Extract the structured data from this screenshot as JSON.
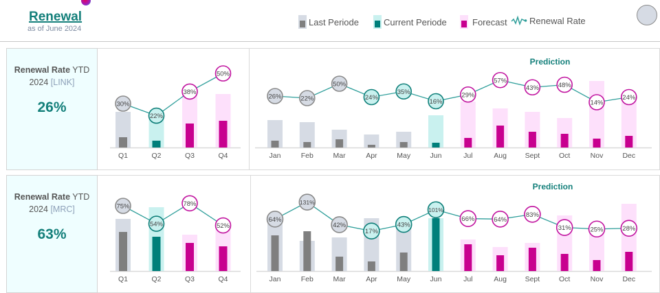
{
  "header": {
    "title": "Renewal",
    "subtitle": "as of June 2024"
  },
  "legend": [
    {
      "label": "Last Periode",
      "style": "last"
    },
    {
      "label": "Current Periode",
      "style": "current"
    },
    {
      "label": "Forecast",
      "style": "forecast"
    },
    {
      "label": "Renewal Rate",
      "icon": "line-chart-icon"
    }
  ],
  "colors": {
    "last_bg": "#d6dbe4",
    "last_fg": "#7f7f7f",
    "last_border": "#8a8a8a",
    "current_bg": "#c9f1ef",
    "current_fg": "#007f7a",
    "current_border": "#0f7f79",
    "forecast_bg": "#fde0fb",
    "forecast_fg": "#c8008f",
    "forecast_border": "#c0119e",
    "line": "#2e9e9a",
    "accent": "#137f7a"
  },
  "kpis": [
    {
      "label_bold": "Renewal Rate",
      "label_rest": " YTD",
      "year": "2024",
      "tag": "[LINK]",
      "value": "26%"
    },
    {
      "label_bold": "Renewal Rate",
      "label_rest": " YTD",
      "year": "2024",
      "tag": "[MRC]",
      "value": "63%"
    }
  ],
  "chart_data": [
    {
      "type": "bar+line",
      "id": "link-quarterly",
      "categories": [
        "Q1",
        "Q2",
        "Q3",
        "Q4"
      ],
      "period": [
        "last",
        "current",
        "forecast",
        "forecast"
      ],
      "bar_style": [
        "last",
        "current",
        "forecast",
        "forecast"
      ],
      "target": [
        52,
        45,
        82,
        78
      ],
      "actual": [
        15,
        10,
        35,
        39
      ],
      "rate_labels": [
        "30%",
        "22%",
        "38%",
        "50%"
      ],
      "rate": [
        30,
        22,
        38,
        50
      ]
    },
    {
      "type": "bar+line",
      "id": "link-monthly",
      "title": "Prediction",
      "categories": [
        "Jan",
        "Feb",
        "Mar",
        "Apr",
        "May",
        "Jun",
        "Jul",
        "Aug",
        "Sept",
        "Oct",
        "Nov",
        "Dec"
      ],
      "period": [
        "last",
        "last",
        "last",
        "current",
        "current",
        "current",
        "forecast",
        "forecast",
        "forecast",
        "forecast",
        "forecast",
        "forecast"
      ],
      "bar_style": [
        "last",
        "last",
        "last",
        "last",
        "last",
        "current",
        "forecast",
        "forecast",
        "forecast",
        "forecast",
        "forecast",
        "forecast"
      ],
      "target": [
        40,
        37,
        26,
        19,
        23,
        47,
        67,
        57,
        52,
        43,
        97,
        75
      ],
      "actual": [
        10,
        8,
        12,
        4,
        8,
        7,
        14,
        32,
        23,
        20,
        13,
        17
      ],
      "rate_labels": [
        "26%",
        "22%",
        "50%",
        "24%",
        "35%",
        "16%",
        "29%",
        "57%",
        "43%",
        "48%",
        "14%",
        "24%"
      ],
      "rate": [
        26,
        22,
        50,
        24,
        35,
        16,
        29,
        57,
        43,
        48,
        14,
        24
      ]
    },
    {
      "type": "bar+line",
      "id": "mrc-quarterly",
      "categories": [
        "Q1",
        "Q2",
        "Q3",
        "Q4"
      ],
      "period": [
        "last",
        "current",
        "forecast",
        "forecast"
      ],
      "bar_style": [
        "last",
        "current",
        "forecast",
        "forecast"
      ],
      "target": [
        76,
        93,
        53,
        60
      ],
      "actual": [
        57,
        50,
        41,
        36
      ],
      "rate_labels": [
        "75%",
        "54%",
        "78%",
        "52%"
      ],
      "rate": [
        75,
        54,
        78,
        52
      ]
    },
    {
      "type": "bar+line",
      "id": "mrc-monthly",
      "title": "Prediction",
      "categories": [
        "Jan",
        "Feb",
        "Mar",
        "Apr",
        "May",
        "Jun",
        "Jul",
        "Aug",
        "Sept",
        "Oct",
        "Nov",
        "Dec"
      ],
      "period": [
        "last",
        "last",
        "last",
        "current",
        "current",
        "current",
        "forecast",
        "forecast",
        "forecast",
        "forecast",
        "forecast",
        "forecast"
      ],
      "bar_style": [
        "last",
        "last",
        "last",
        "last",
        "last",
        "current",
        "forecast",
        "forecast",
        "forecast",
        "forecast",
        "forecast",
        "forecast"
      ],
      "target": [
        75,
        44,
        49,
        77,
        65,
        77,
        46,
        35,
        41,
        81,
        60,
        98
      ],
      "actual": [
        52,
        58,
        21,
        14,
        27,
        77,
        39,
        23,
        34,
        25,
        16,
        28
      ],
      "rate_labels": [
        "64%",
        "131%",
        "42%",
        "17%",
        "43%",
        "101%",
        "66%",
        "64%",
        "83%",
        "31%",
        "25%",
        "28%"
      ],
      "rate": [
        64,
        131,
        42,
        17,
        43,
        101,
        66,
        64,
        83,
        31,
        25,
        28
      ]
    }
  ]
}
